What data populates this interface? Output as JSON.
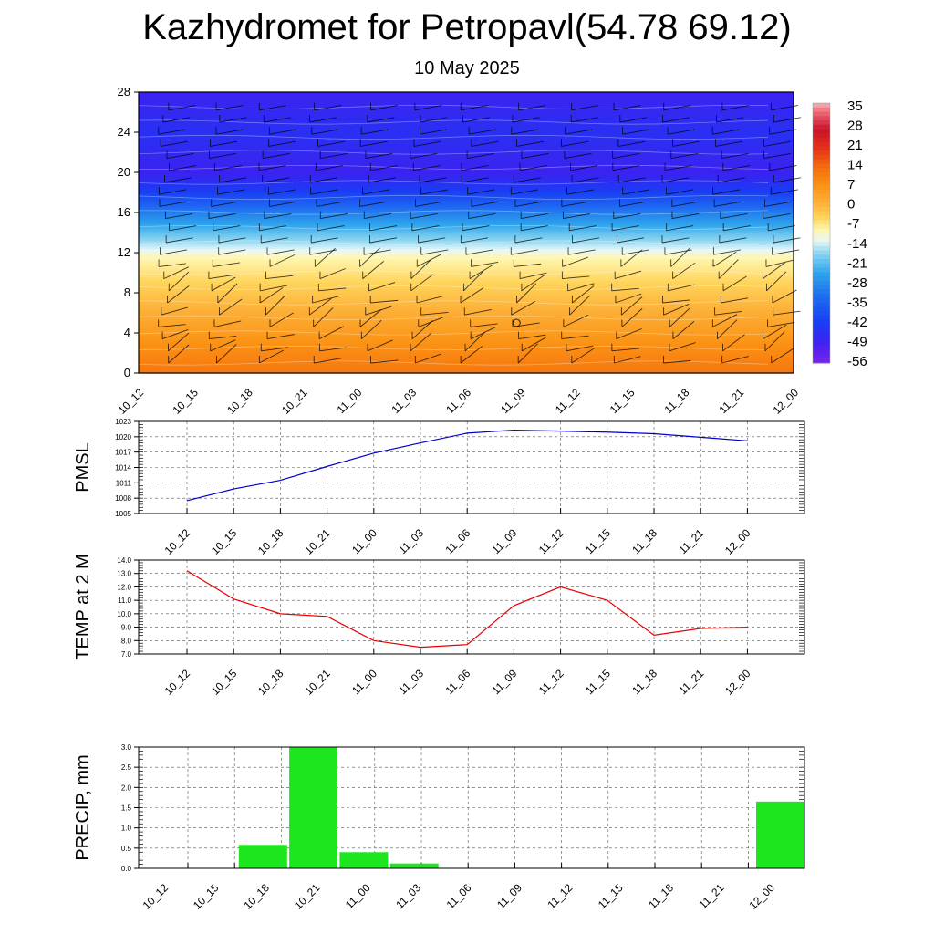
{
  "page": {
    "title": "Kazhydromet for Petropavl(54.78 69.12)",
    "subtitle": "10 May 2025"
  },
  "chart_data": [
    {
      "type": "heatmap",
      "name": "cross-section",
      "times": [
        "10_12",
        "10_15",
        "10_18",
        "10_21",
        "11_00",
        "11_03",
        "11_06",
        "11_09",
        "11_12",
        "11_15",
        "11_18",
        "11_21",
        "12_00"
      ],
      "yticks": [
        0,
        4,
        8,
        12,
        16,
        20,
        24,
        28
      ],
      "ylim": [
        0,
        28
      ],
      "colorbar_labels": [
        "35",
        "28",
        "21",
        "14",
        "7",
        "0",
        "-7",
        "-14",
        "-21",
        "-28",
        "-35",
        "-42",
        "-49",
        "-56"
      ],
      "colorscale": {
        "min": -60,
        "max": 38,
        "stops": [
          {
            "v": -60,
            "color": "#7b22ee"
          },
          {
            "v": -52,
            "color": "#3c22f0"
          },
          {
            "v": -45,
            "color": "#1a3cf5"
          },
          {
            "v": -35,
            "color": "#1e6cf0"
          },
          {
            "v": -26,
            "color": "#2fa6ec"
          },
          {
            "v": -19,
            "color": "#86d3f2"
          },
          {
            "v": -14,
            "color": "#e8f7f5"
          },
          {
            "v": -10,
            "color": "#fff6b0"
          },
          {
            "v": -5,
            "color": "#ffd35a"
          },
          {
            "v": 0,
            "color": "#fdb23a"
          },
          {
            "v": 7,
            "color": "#fb9214"
          },
          {
            "v": 14,
            "color": "#f46b0e"
          },
          {
            "v": 21,
            "color": "#e5301a"
          },
          {
            "v": 28,
            "color": "#c8122a"
          },
          {
            "v": 35,
            "color": "#f06e7a"
          },
          {
            "v": 38,
            "color": "#f4b6bc"
          }
        ]
      },
      "profile": [
        {
          "h": 0,
          "t": 12
        },
        {
          "h": 3,
          "t": 7
        },
        {
          "h": 6,
          "t": 1
        },
        {
          "h": 9,
          "t": -5
        },
        {
          "h": 11.5,
          "t": -10
        },
        {
          "h": 12.5,
          "t": -15
        },
        {
          "h": 14,
          "t": -22
        },
        {
          "h": 16,
          "t": -32
        },
        {
          "h": 18,
          "t": -44
        },
        {
          "h": 20,
          "t": -52
        },
        {
          "h": 22,
          "t": -50
        },
        {
          "h": 24,
          "t": -48
        },
        {
          "h": 26,
          "t": -50
        },
        {
          "h": 28,
          "t": -52
        }
      ]
    },
    {
      "type": "line",
      "name": "pmsl",
      "ylabel": "PMSL",
      "categories": [
        "10_12",
        "10_15",
        "10_18",
        "10_21",
        "11_00",
        "11_03",
        "11_06",
        "11_09",
        "11_12",
        "11_15",
        "11_18",
        "11_21",
        "12_00"
      ],
      "values": [
        1007.5,
        1009.8,
        1011.5,
        1014.2,
        1016.8,
        1018.8,
        1020.7,
        1021.3,
        1021.1,
        1020.9,
        1020.6,
        1019.9,
        1019.2
      ],
      "ylim": [
        1005,
        1023
      ],
      "yticks": [
        "1005",
        "1008",
        "1011",
        "1014",
        "1017",
        "1020",
        "1023"
      ],
      "color": "#0000cc",
      "grid": true
    },
    {
      "type": "line",
      "name": "temp",
      "ylabel": "TEMP at 2 M",
      "categories": [
        "10_12",
        "10_15",
        "10_18",
        "10_21",
        "11_00",
        "11_03",
        "11_06",
        "11_09",
        "11_12",
        "11_15",
        "11_18",
        "11_21",
        "12_00"
      ],
      "values": [
        13.2,
        11.1,
        10.0,
        9.8,
        8.0,
        7.5,
        7.7,
        10.6,
        12.0,
        11.0,
        8.4,
        8.9,
        9.0
      ],
      "ylim": [
        7.0,
        14.0
      ],
      "yticks": [
        "7.0",
        "8.0",
        "9.0",
        "10.0",
        "11.0",
        "12.0",
        "13.0",
        "14.0"
      ],
      "color": "#e60000",
      "grid": true
    },
    {
      "type": "bar",
      "name": "precip",
      "ylabel": "PRECIP, mm",
      "categories": [
        "10_12",
        "10_15",
        "10_18",
        "10_21",
        "11_00",
        "11_03",
        "11_06",
        "11_09",
        "11_12",
        "11_15",
        "11_18",
        "11_21",
        "12_00"
      ],
      "values": [
        0,
        0.58,
        3.0,
        0.4,
        0.12,
        0,
        0,
        0,
        0,
        0,
        0,
        0,
        1.65
      ],
      "ylim": [
        0,
        3.0
      ],
      "yticks": [
        "0.0",
        "0.5",
        "1.0",
        "1.5",
        "2.0",
        "2.5",
        "3.0"
      ],
      "color": "#1ee61e",
      "grid": true
    }
  ]
}
